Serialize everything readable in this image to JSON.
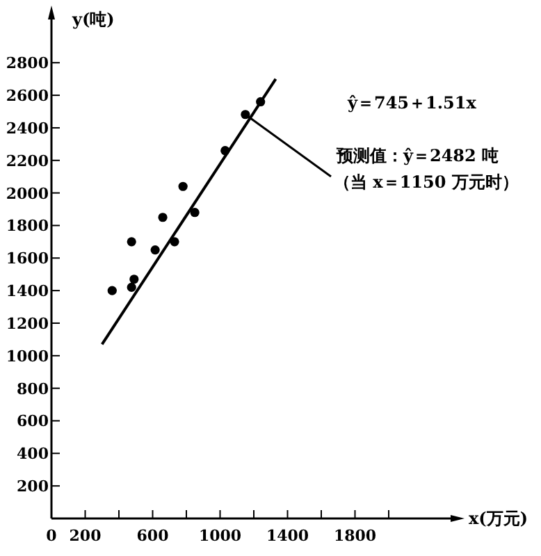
{
  "chart_data": {
    "type": "scatter",
    "xlabel": "x(万元)",
    "ylabel": "y(吨)",
    "xlim": [
      0,
      2400
    ],
    "ylim": [
      0,
      3100
    ],
    "xticks": [
      0,
      200,
      {
        "value": 400,
        "label": null
      },
      600,
      {
        "value": 800,
        "label": null
      },
      1000,
      {
        "value": 1200,
        "label": null
      },
      1400,
      {
        "value": 1600,
        "label": null
      },
      1800,
      {
        "value": 2000,
        "label": null
      }
    ],
    "yticks": [
      {
        "value": 0,
        "label": null
      },
      200,
      400,
      600,
      800,
      1000,
      1200,
      1400,
      1600,
      1800,
      2000,
      2200,
      2400,
      2600,
      2800
    ],
    "series": [
      {
        "color": "#000000",
        "marker": "circle",
        "x": [
          360,
          475,
          475,
          490,
          615,
          660,
          730,
          780,
          850,
          1030,
          1240
        ],
        "values": [
          1400,
          1700,
          1420,
          1470,
          1650,
          1850,
          1700,
          2040,
          1880,
          2260,
          2560
        ]
      },
      {
        "type": "line",
        "color": "#000000",
        "x": [
          300,
          1330
        ],
        "values": [
          1070,
          2700
        ]
      }
    ],
    "annotations": [
      "ŷ＝745＋1.51x",
      {
        "text": "预测值：ŷ＝2482 吨",
        "x": 1150,
        "y": 2482
      },
      {
        "text": "（当 x＝1150 万元时）",
        "x": 1150,
        "y": 2482
      }
    ]
  }
}
